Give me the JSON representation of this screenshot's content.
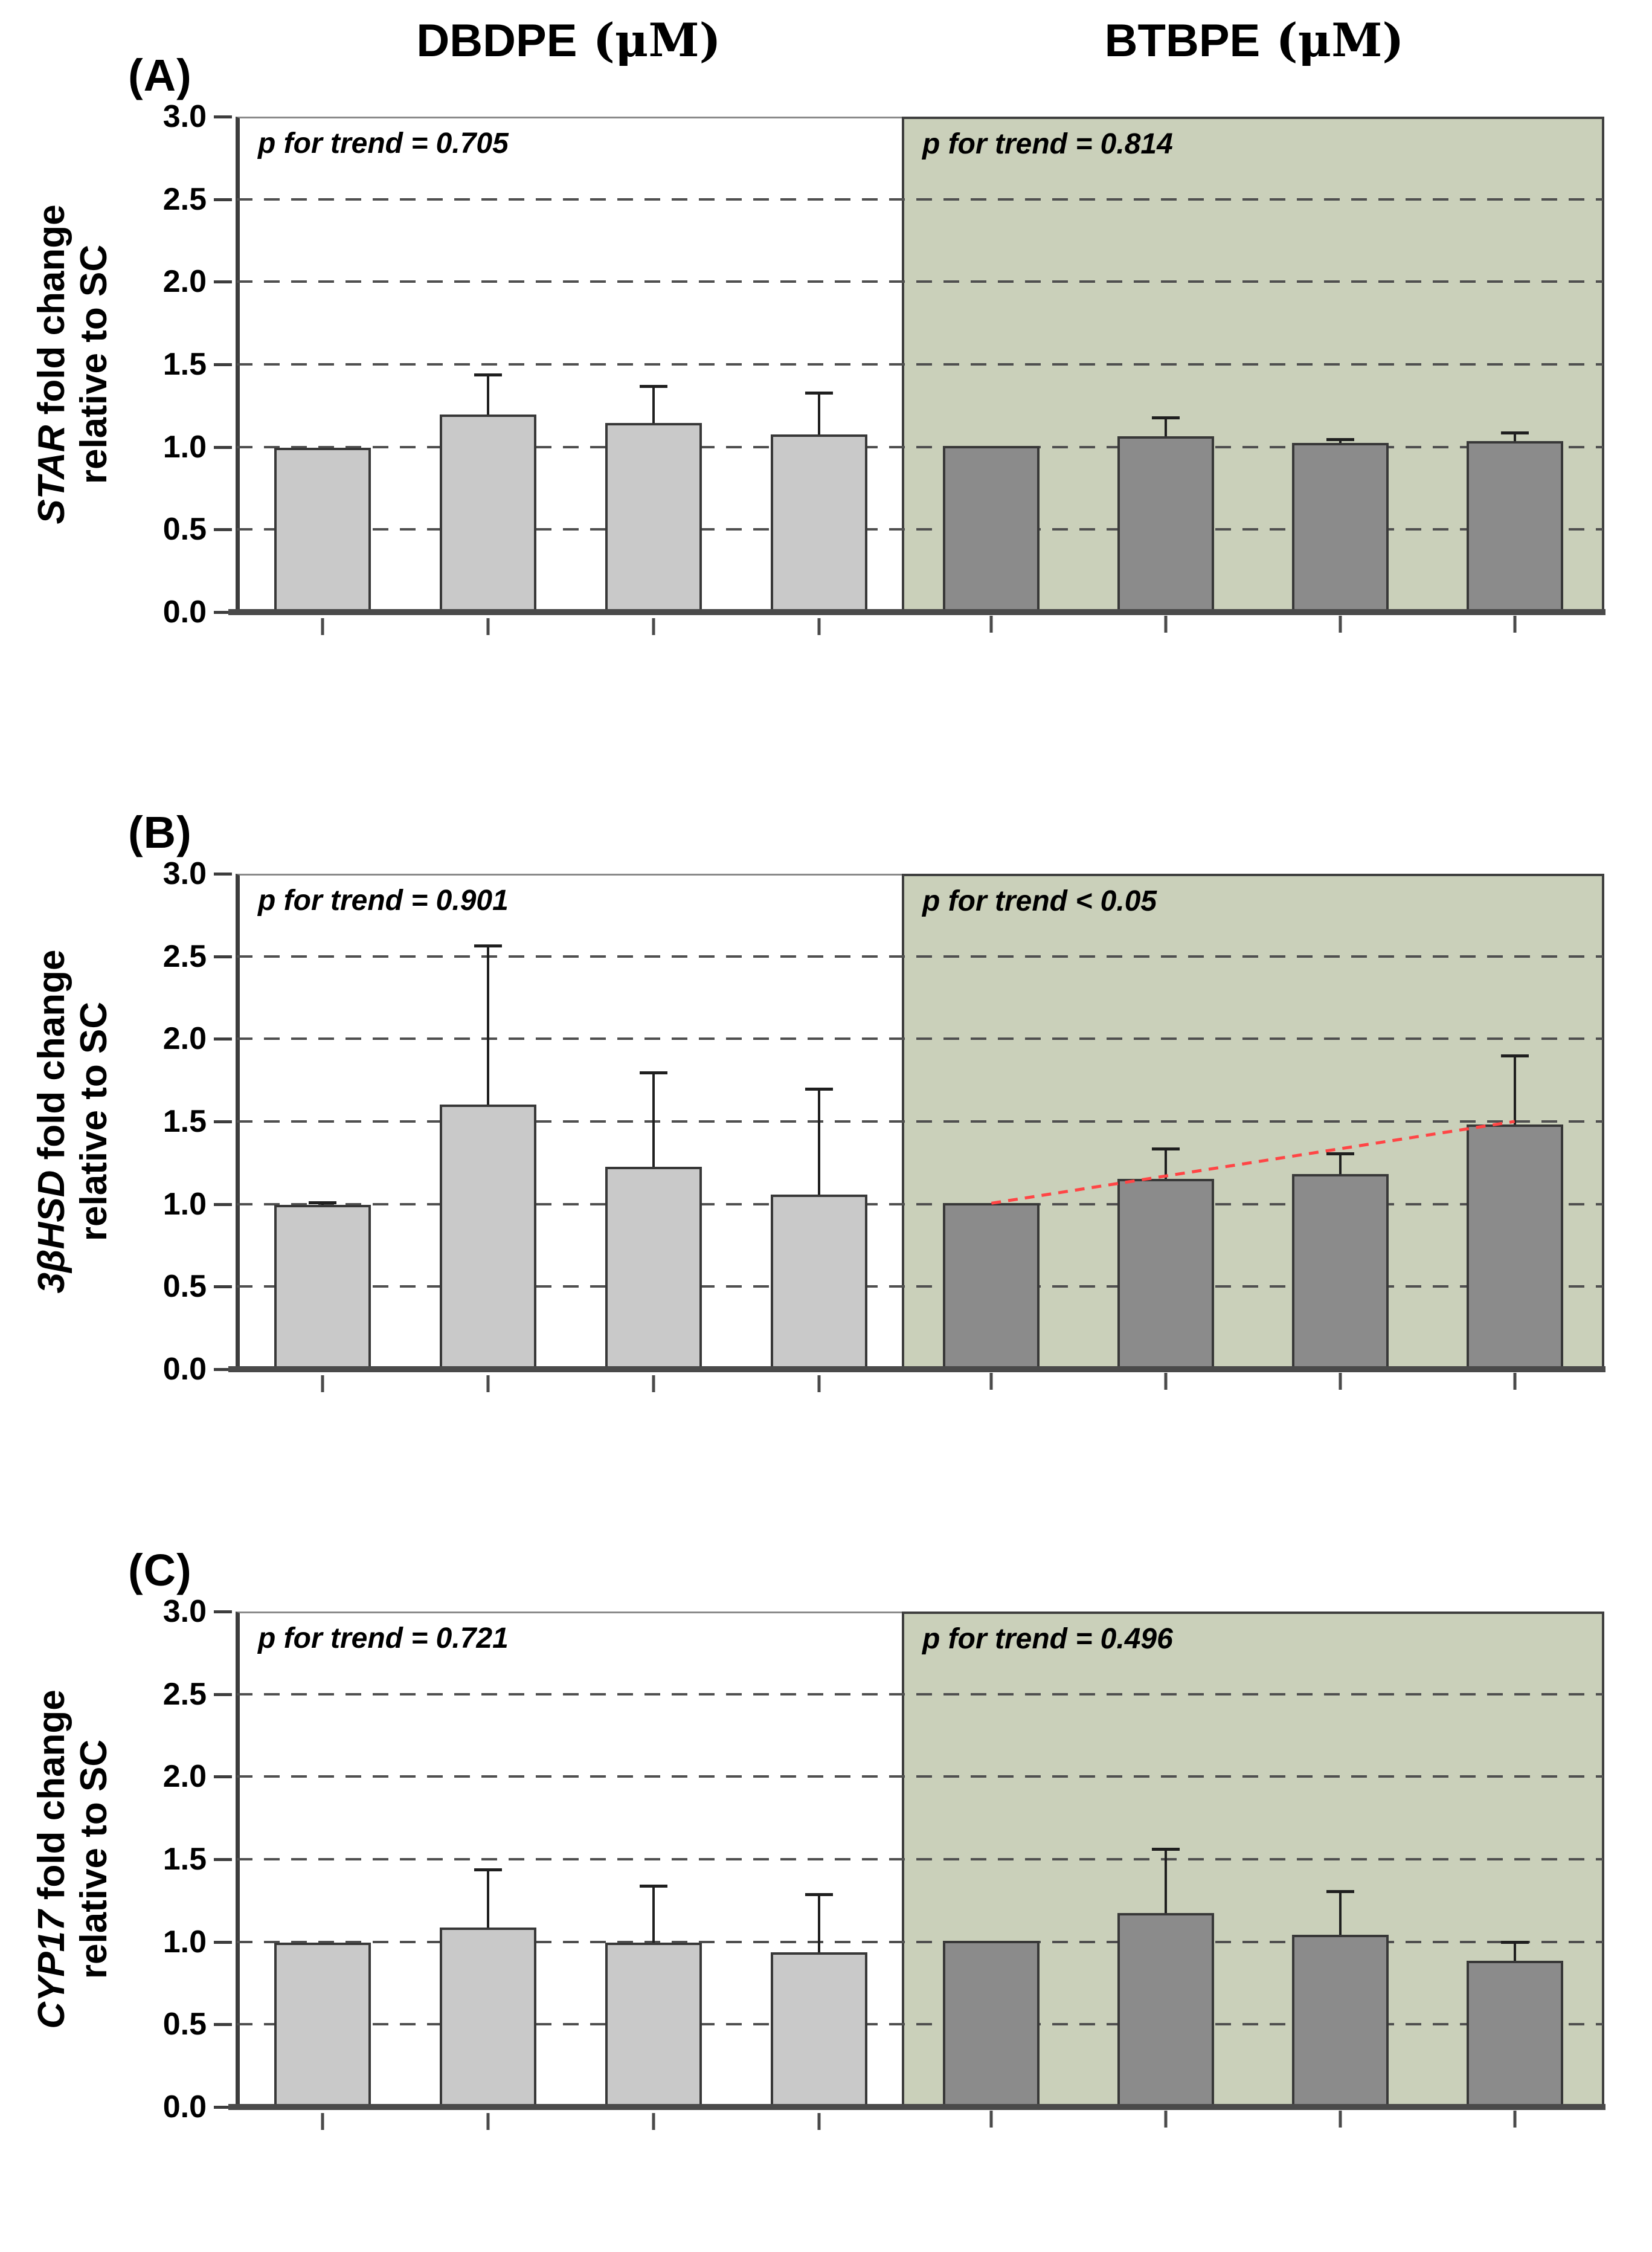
{
  "header": {
    "panel_titles": [
      {
        "main": "DBDPE",
        "unit": " (μM)"
      },
      {
        "main": "BTBPE",
        "unit": " (μM)"
      }
    ]
  },
  "colors": {
    "light_bar": "#c9c9c9",
    "dark_bar": "#8b8b8b",
    "bar_border": "#383838",
    "green_background": "#cad0ba",
    "white_background": "#ffffff",
    "grid": "#4f4f4f",
    "axis": "#3d3d3d",
    "frame": "#8a8a8a",
    "error_bar": "#1f1f1f",
    "trend_line": "#ff4545",
    "text": "#000000"
  },
  "chart_data": [
    {
      "panel_label": "(A)",
      "type": "bar",
      "ylabel_gene": "STAR",
      "ylabel_rest": " fold change",
      "ylabel_line2": "relative to SC",
      "ylim": [
        0.0,
        3.0
      ],
      "yticks": [
        3.0,
        2.5,
        2.0,
        1.5,
        1.0,
        0.5,
        0.0
      ],
      "grid_values": [
        2.5,
        2.0,
        1.5,
        1.0,
        0.5
      ],
      "grid_on": true,
      "legend": "none",
      "groups": [
        {
          "name": "DBDPE",
          "p_label": "p for trend = 0.705",
          "values": [
            1.0,
            1.2,
            1.15,
            1.08
          ],
          "errors": [
            0,
            0.24,
            0.22,
            0.25
          ],
          "trend_line": null
        },
        {
          "name": "BTBPE",
          "p_label": "p for trend = 0.814",
          "values": [
            1.0,
            1.06,
            1.02,
            1.03
          ],
          "errors": [
            0,
            0.11,
            0.02,
            0.05
          ],
          "trend_line": null
        }
      ]
    },
    {
      "panel_label": "(B)",
      "type": "bar",
      "ylabel_gene": "3βHSD",
      "ylabel_rest": " fold change",
      "ylabel_line2": "relative to SC",
      "ylim": [
        0.0,
        3.0
      ],
      "yticks": [
        3.0,
        2.5,
        2.0,
        1.5,
        1.0,
        0.5,
        0.0
      ],
      "grid_values": [
        2.5,
        2.0,
        1.5,
        1.0,
        0.5
      ],
      "grid_on": true,
      "legend": "none",
      "groups": [
        {
          "name": "DBDPE",
          "p_label": "p for trend = 0.901",
          "values": [
            1.0,
            1.61,
            1.23,
            1.06
          ],
          "errors": [
            0.01,
            0.96,
            0.57,
            0.64
          ],
          "trend_line": null
        },
        {
          "name": "BTBPE",
          "p_label": "p for trend < 0.05",
          "values": [
            1.0,
            1.15,
            1.18,
            1.48
          ],
          "errors": [
            0,
            0.18,
            0.12,
            0.42
          ],
          "trend_line": {
            "from_value": 1.0,
            "to_value": 1.5
          }
        }
      ]
    },
    {
      "panel_label": "(C)",
      "type": "bar",
      "ylabel_gene": "CYP17",
      "ylabel_rest": " fold change",
      "ylabel_line2": "relative to SC",
      "ylim": [
        0.0,
        3.0
      ],
      "yticks": [
        3.0,
        2.5,
        2.0,
        1.5,
        1.0,
        0.5,
        0.0
      ],
      "grid_values": [
        2.5,
        2.0,
        1.5,
        1.0,
        0.5
      ],
      "grid_on": true,
      "legend": "none",
      "groups": [
        {
          "name": "DBDPE",
          "p_label": "p for trend = 0.721",
          "values": [
            1.0,
            1.09,
            1.0,
            0.94
          ],
          "errors": [
            0,
            0.35,
            0.34,
            0.35
          ],
          "trend_line": null
        },
        {
          "name": "BTBPE",
          "p_label": "p for trend = 0.496",
          "values": [
            1.0,
            1.17,
            1.04,
            0.88
          ],
          "errors": [
            0,
            0.39,
            0.26,
            0.11
          ],
          "trend_line": null
        }
      ]
    }
  ]
}
